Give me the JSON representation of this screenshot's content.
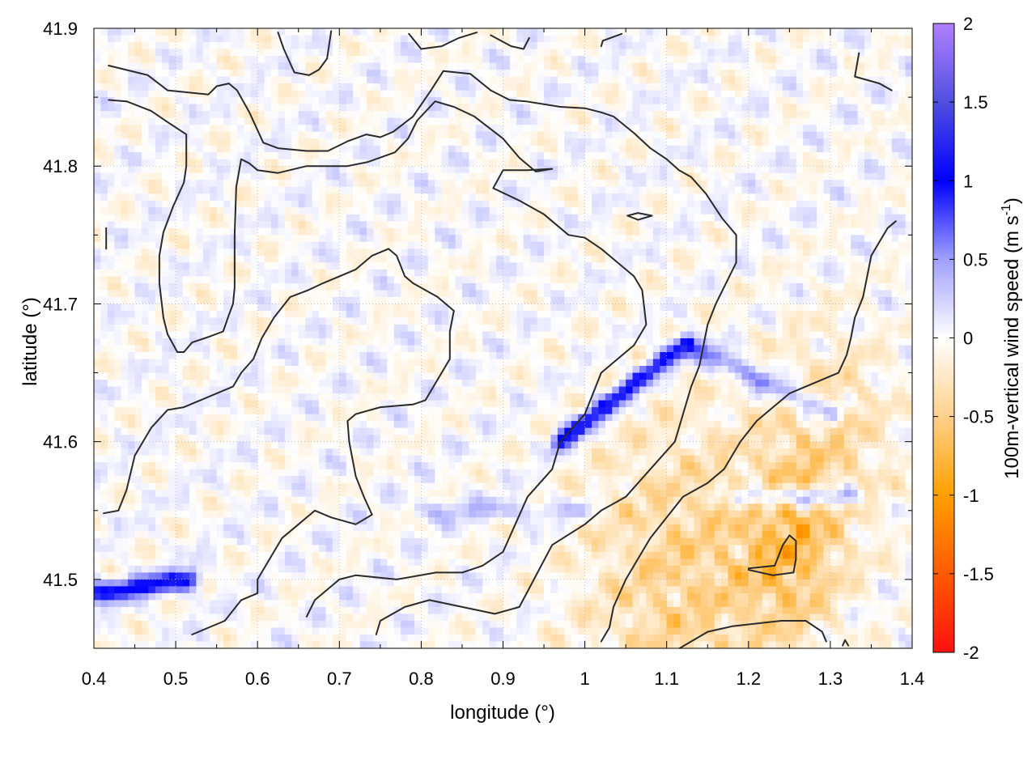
{
  "chart_data": {
    "type": "heatmap",
    "xlabel": "longitude (°)",
    "ylabel": "latitude (°)",
    "colorbar_label": "100m-vertical wind speed (m s",
    "colorbar_label_superscript": "-1",
    "colorbar_label_close": ")",
    "xlim": [
      0.4,
      1.4
    ],
    "ylim": [
      41.45,
      41.9
    ],
    "x_ticks": [
      0.4,
      0.5,
      0.6,
      0.7,
      0.8,
      0.9,
      1.0,
      1.1,
      1.2,
      1.3,
      1.4
    ],
    "x_tick_labels": [
      "0.4",
      "0.5",
      "0.6",
      "0.7",
      "0.8",
      "0.9",
      "1",
      "1.1",
      "1.2",
      "1.3",
      "1.4"
    ],
    "y_ticks": [
      41.5,
      41.6,
      41.7,
      41.8,
      41.9
    ],
    "y_tick_labels": [
      "41.5",
      "41.6",
      "41.7",
      "41.8",
      "41.9"
    ],
    "colorbar_range": [
      -2,
      2
    ],
    "colorbar_ticks": [
      2,
      1.5,
      1,
      0.5,
      0,
      -0.5,
      -1,
      -1.5,
      -2
    ],
    "colorbar_tick_labels": [
      "2",
      "1.5",
      "1",
      "0.5",
      "0",
      "-0.5",
      "-1",
      "-1.5",
      "-2"
    ],
    "colormap": [
      {
        "value": -2,
        "color": "#ff1010"
      },
      {
        "value": -1.5,
        "color": "#ff5a00"
      },
      {
        "value": -1,
        "color": "#ffa000"
      },
      {
        "value": -0.5,
        "color": "#ffd08a"
      },
      {
        "value": 0,
        "color": "#ffffff"
      },
      {
        "value": 0.5,
        "color": "#a0a0ff"
      },
      {
        "value": 1,
        "color": "#0000ff"
      },
      {
        "value": 1.5,
        "color": "#5050e0"
      },
      {
        "value": 2,
        "color": "#b080ff"
      }
    ],
    "grid": true,
    "contour_color": "#2a2a2a",
    "field_features": [
      {
        "kind": "positive-band",
        "from": [
          0.97,
          41.6
        ],
        "to": [
          1.12,
          41.67
        ],
        "peak": 1.1
      },
      {
        "kind": "positive-band",
        "from": [
          1.13,
          41.67
        ],
        "to": [
          1.3,
          41.62
        ],
        "peak": 0.7
      },
      {
        "kind": "positive-band",
        "from": [
          1.19,
          41.56
        ],
        "to": [
          1.33,
          41.56
        ],
        "peak": 0.7
      },
      {
        "kind": "positive-band",
        "from": [
          0.4,
          41.49
        ],
        "to": [
          0.52,
          41.5
        ],
        "peak": 1.0
      },
      {
        "kind": "positive-band",
        "from": [
          0.8,
          41.55
        ],
        "to": [
          1.0,
          41.55
        ],
        "peak": 0.3
      },
      {
        "kind": "negative-region",
        "center": [
          1.12,
          41.5
        ],
        "radius": 0.12,
        "peak": -0.6
      },
      {
        "kind": "negative-region",
        "center": [
          1.25,
          41.52
        ],
        "radius": 0.06,
        "peak": -0.7
      },
      {
        "kind": "negative-region",
        "center": [
          1.3,
          41.6
        ],
        "radius": 0.08,
        "peak": -0.45
      }
    ],
    "contours": [
      [
        [
          0.418,
          41.873
        ],
        [
          0.466,
          41.866
        ],
        [
          0.49,
          41.855
        ],
        [
          0.54,
          41.852
        ],
        [
          0.55,
          41.858
        ],
        [
          0.565,
          41.86
        ],
        [
          0.575,
          41.855
        ],
        [
          0.59,
          41.839
        ],
        [
          0.607,
          41.817
        ],
        [
          0.625,
          41.813
        ],
        [
          0.66,
          41.811
        ],
        [
          0.686,
          41.811
        ],
        [
          0.71,
          41.818
        ],
        [
          0.733,
          41.823
        ],
        [
          0.75,
          41.821
        ],
        [
          0.766,
          41.825
        ],
        [
          0.79,
          41.836
        ],
        [
          0.812,
          41.855
        ],
        [
          0.827,
          41.869
        ],
        [
          0.86,
          41.867
        ],
        [
          0.885,
          41.855
        ],
        [
          0.908,
          41.848
        ],
        [
          0.928,
          41.847
        ],
        [
          0.97,
          41.843
        ],
        [
          1.0,
          41.842
        ],
        [
          1.02,
          41.839
        ],
        [
          1.035,
          41.836
        ],
        [
          1.06,
          41.824
        ],
        [
          1.08,
          41.813
        ],
        [
          1.1,
          41.805
        ],
        [
          1.115,
          41.797
        ],
        [
          1.13,
          41.792
        ],
        [
          1.148,
          41.78
        ],
        [
          1.168,
          41.762
        ],
        [
          1.185,
          41.75
        ],
        [
          1.185,
          41.73
        ],
        [
          1.16,
          41.7
        ],
        [
          1.15,
          41.685
        ],
        [
          1.145,
          41.67
        ],
        [
          1.14,
          41.655
        ],
        [
          1.13,
          41.64
        ],
        [
          1.11,
          41.6
        ],
        [
          1.08,
          41.58
        ],
        [
          1.05,
          41.56
        ],
        [
          1.02,
          41.55
        ],
        [
          1.0,
          41.54
        ],
        [
          0.96,
          41.525
        ],
        [
          0.92,
          41.48
        ],
        [
          0.89,
          41.475
        ],
        [
          0.85,
          41.48
        ],
        [
          0.81,
          41.485
        ],
        [
          0.78,
          41.48
        ],
        [
          0.75,
          41.47
        ],
        [
          0.745,
          41.46
        ]
      ],
      [
        [
          0.418,
          41.848
        ],
        [
          0.44,
          41.847
        ],
        [
          0.47,
          41.84
        ],
        [
          0.49,
          41.832
        ],
        [
          0.513,
          41.823
        ],
        [
          0.513,
          41.8
        ],
        [
          0.51,
          41.788
        ],
        [
          0.497,
          41.771
        ],
        [
          0.485,
          41.752
        ],
        [
          0.48,
          41.735
        ],
        [
          0.48,
          41.715
        ],
        [
          0.483,
          41.7
        ],
        [
          0.485,
          41.69
        ],
        [
          0.49,
          41.678
        ],
        [
          0.502,
          41.665
        ],
        [
          0.51,
          41.665
        ],
        [
          0.52,
          41.672
        ],
        [
          0.54,
          41.676
        ],
        [
          0.558,
          41.68
        ],
        [
          0.565,
          41.692
        ],
        [
          0.57,
          41.7
        ],
        [
          0.572,
          41.712
        ],
        [
          0.572,
          41.75
        ],
        [
          0.574,
          41.785
        ],
        [
          0.58,
          41.805
        ],
        [
          0.59,
          41.802
        ],
        [
          0.6,
          41.797
        ],
        [
          0.625,
          41.795
        ],
        [
          0.66,
          41.8
        ],
        [
          0.686,
          41.8
        ],
        [
          0.71,
          41.8
        ],
        [
          0.735,
          41.803
        ],
        [
          0.768,
          41.81
        ],
        [
          0.784,
          41.82
        ],
        [
          0.795,
          41.833
        ],
        [
          0.817,
          41.847
        ],
        [
          0.84,
          41.843
        ],
        [
          0.865,
          41.836
        ],
        [
          0.9,
          41.82
        ],
        [
          0.92,
          41.806
        ],
        [
          0.94,
          41.796
        ],
        [
          0.96,
          41.798
        ],
        [
          0.93,
          41.797
        ],
        [
          0.9,
          41.797
        ],
        [
          0.888,
          41.784
        ],
        [
          0.92,
          41.775
        ],
        [
          0.95,
          41.765
        ],
        [
          0.98,
          41.75
        ],
        [
          1.0,
          41.748
        ],
        [
          1.02,
          41.74
        ],
        [
          1.05,
          41.725
        ],
        [
          1.06,
          41.72
        ],
        [
          1.07,
          41.71
        ],
        [
          1.075,
          41.685
        ],
        [
          1.06,
          41.67
        ],
        [
          1.02,
          41.65
        ],
        [
          1.0,
          41.62
        ],
        [
          0.97,
          41.6
        ],
        [
          0.96,
          41.58
        ],
        [
          0.93,
          41.56
        ],
        [
          0.9,
          41.52
        ],
        [
          0.875,
          41.51
        ],
        [
          0.85,
          41.505
        ],
        [
          0.818,
          41.505
        ],
        [
          0.77,
          41.5
        ],
        [
          0.72,
          41.503
        ],
        [
          0.7,
          41.5
        ],
        [
          0.67,
          41.485
        ],
        [
          0.66,
          41.473
        ]
      ],
      [
        [
          0.412,
          41.548
        ],
        [
          0.43,
          41.55
        ],
        [
          0.44,
          41.565
        ],
        [
          0.45,
          41.59
        ],
        [
          0.47,
          41.61
        ],
        [
          0.49,
          41.623
        ],
        [
          0.51,
          41.625
        ],
        [
          0.53,
          41.63
        ],
        [
          0.55,
          41.635
        ],
        [
          0.57,
          41.64
        ],
        [
          0.58,
          41.65
        ],
        [
          0.595,
          41.66
        ],
        [
          0.605,
          41.675
        ],
        [
          0.62,
          41.69
        ],
        [
          0.64,
          41.705
        ],
        [
          0.662,
          41.71
        ],
        [
          0.68,
          41.715
        ],
        [
          0.7,
          41.72
        ],
        [
          0.72,
          41.725
        ],
        [
          0.74,
          41.735
        ],
        [
          0.76,
          41.74
        ],
        [
          0.77,
          41.735
        ],
        [
          0.78,
          41.72
        ],
        [
          0.79,
          41.715
        ],
        [
          0.82,
          41.705
        ],
        [
          0.84,
          41.695
        ],
        [
          0.835,
          41.68
        ],
        [
          0.835,
          41.66
        ],
        [
          0.82,
          41.645
        ],
        [
          0.805,
          41.63
        ],
        [
          0.79,
          41.627
        ],
        [
          0.75,
          41.625
        ],
        [
          0.72,
          41.62
        ],
        [
          0.71,
          41.615
        ],
        [
          0.712,
          41.6
        ],
        [
          0.72,
          41.575
        ],
        [
          0.73,
          41.56
        ],
        [
          0.74,
          41.547
        ],
        [
          0.72,
          41.54
        ],
        [
          0.69,
          41.545
        ],
        [
          0.67,
          41.55
        ],
        [
          0.65,
          41.54
        ],
        [
          0.63,
          41.53
        ],
        [
          0.62,
          41.52
        ],
        [
          0.6,
          41.5
        ],
        [
          0.6,
          41.49
        ],
        [
          0.58,
          41.485
        ],
        [
          0.56,
          41.47
        ],
        [
          0.54,
          41.465
        ],
        [
          0.52,
          41.46
        ]
      ],
      [
        [
          1.02,
          41.455
        ],
        [
          1.03,
          41.465
        ],
        [
          1.035,
          41.48
        ],
        [
          1.05,
          41.5
        ],
        [
          1.065,
          41.515
        ],
        [
          1.08,
          41.53
        ],
        [
          1.1,
          41.545
        ],
        [
          1.12,
          41.56
        ],
        [
          1.15,
          41.57
        ],
        [
          1.17,
          41.58
        ],
        [
          1.19,
          41.6
        ],
        [
          1.21,
          41.615
        ],
        [
          1.23,
          41.625
        ],
        [
          1.25,
          41.635
        ],
        [
          1.27,
          41.64
        ],
        [
          1.29,
          41.645
        ],
        [
          1.31,
          41.65
        ],
        [
          1.32,
          41.663
        ],
        [
          1.325,
          41.675
        ],
        [
          1.33,
          41.69
        ],
        [
          1.34,
          41.705
        ],
        [
          1.345,
          41.72
        ],
        [
          1.35,
          41.735
        ],
        [
          1.36,
          41.745
        ],
        [
          1.37,
          41.755
        ],
        [
          1.38,
          41.76
        ]
      ],
      [
        [
          1.11,
          41.448
        ],
        [
          1.13,
          41.455
        ],
        [
          1.15,
          41.462
        ],
        [
          1.18,
          41.466
        ],
        [
          1.21,
          41.468
        ],
        [
          1.24,
          41.47
        ],
        [
          1.27,
          41.47
        ],
        [
          1.29,
          41.462
        ],
        [
          1.295,
          41.455
        ]
      ],
      [
        [
          1.2,
          41.507
        ],
        [
          1.23,
          41.503
        ],
        [
          1.255,
          41.505
        ],
        [
          1.258,
          41.515
        ],
        [
          1.258,
          41.528
        ],
        [
          1.25,
          41.532
        ],
        [
          1.242,
          41.525
        ],
        [
          1.232,
          41.51
        ],
        [
          1.2,
          41.508
        ]
      ],
      [
        [
          1.052,
          41.764
        ],
        [
          1.065,
          41.766
        ],
        [
          1.082,
          41.764
        ],
        [
          1.065,
          41.761
        ],
        [
          1.052,
          41.764
        ]
      ],
      [
        [
          0.625,
          41.897
        ],
        [
          0.632,
          41.885
        ],
        [
          0.645,
          41.868
        ],
        [
          0.663,
          41.866
        ],
        [
          0.675,
          41.87
        ],
        [
          0.685,
          41.878
        ],
        [
          0.69,
          41.898
        ]
      ],
      [
        [
          0.785,
          41.896
        ],
        [
          0.8,
          41.885
        ],
        [
          0.825,
          41.887
        ],
        [
          0.846,
          41.893
        ],
        [
          0.868,
          41.897
        ]
      ],
      [
        [
          0.885,
          41.895
        ],
        [
          0.91,
          41.887
        ],
        [
          0.925,
          41.885
        ],
        [
          0.932,
          41.893
        ]
      ],
      [
        [
          1.02,
          41.887
        ],
        [
          1.022,
          41.891
        ],
        [
          1.045,
          41.896
        ]
      ],
      [
        [
          1.335,
          41.882
        ],
        [
          1.33,
          41.865
        ],
        [
          1.36,
          41.86
        ],
        [
          1.375,
          41.855
        ]
      ],
      [
        [
          0.415,
          41.755
        ],
        [
          0.415,
          41.74
        ]
      ],
      [
        [
          1.315,
          41.452
        ],
        [
          1.318,
          41.456
        ],
        [
          1.322,
          41.452
        ]
      ]
    ]
  }
}
